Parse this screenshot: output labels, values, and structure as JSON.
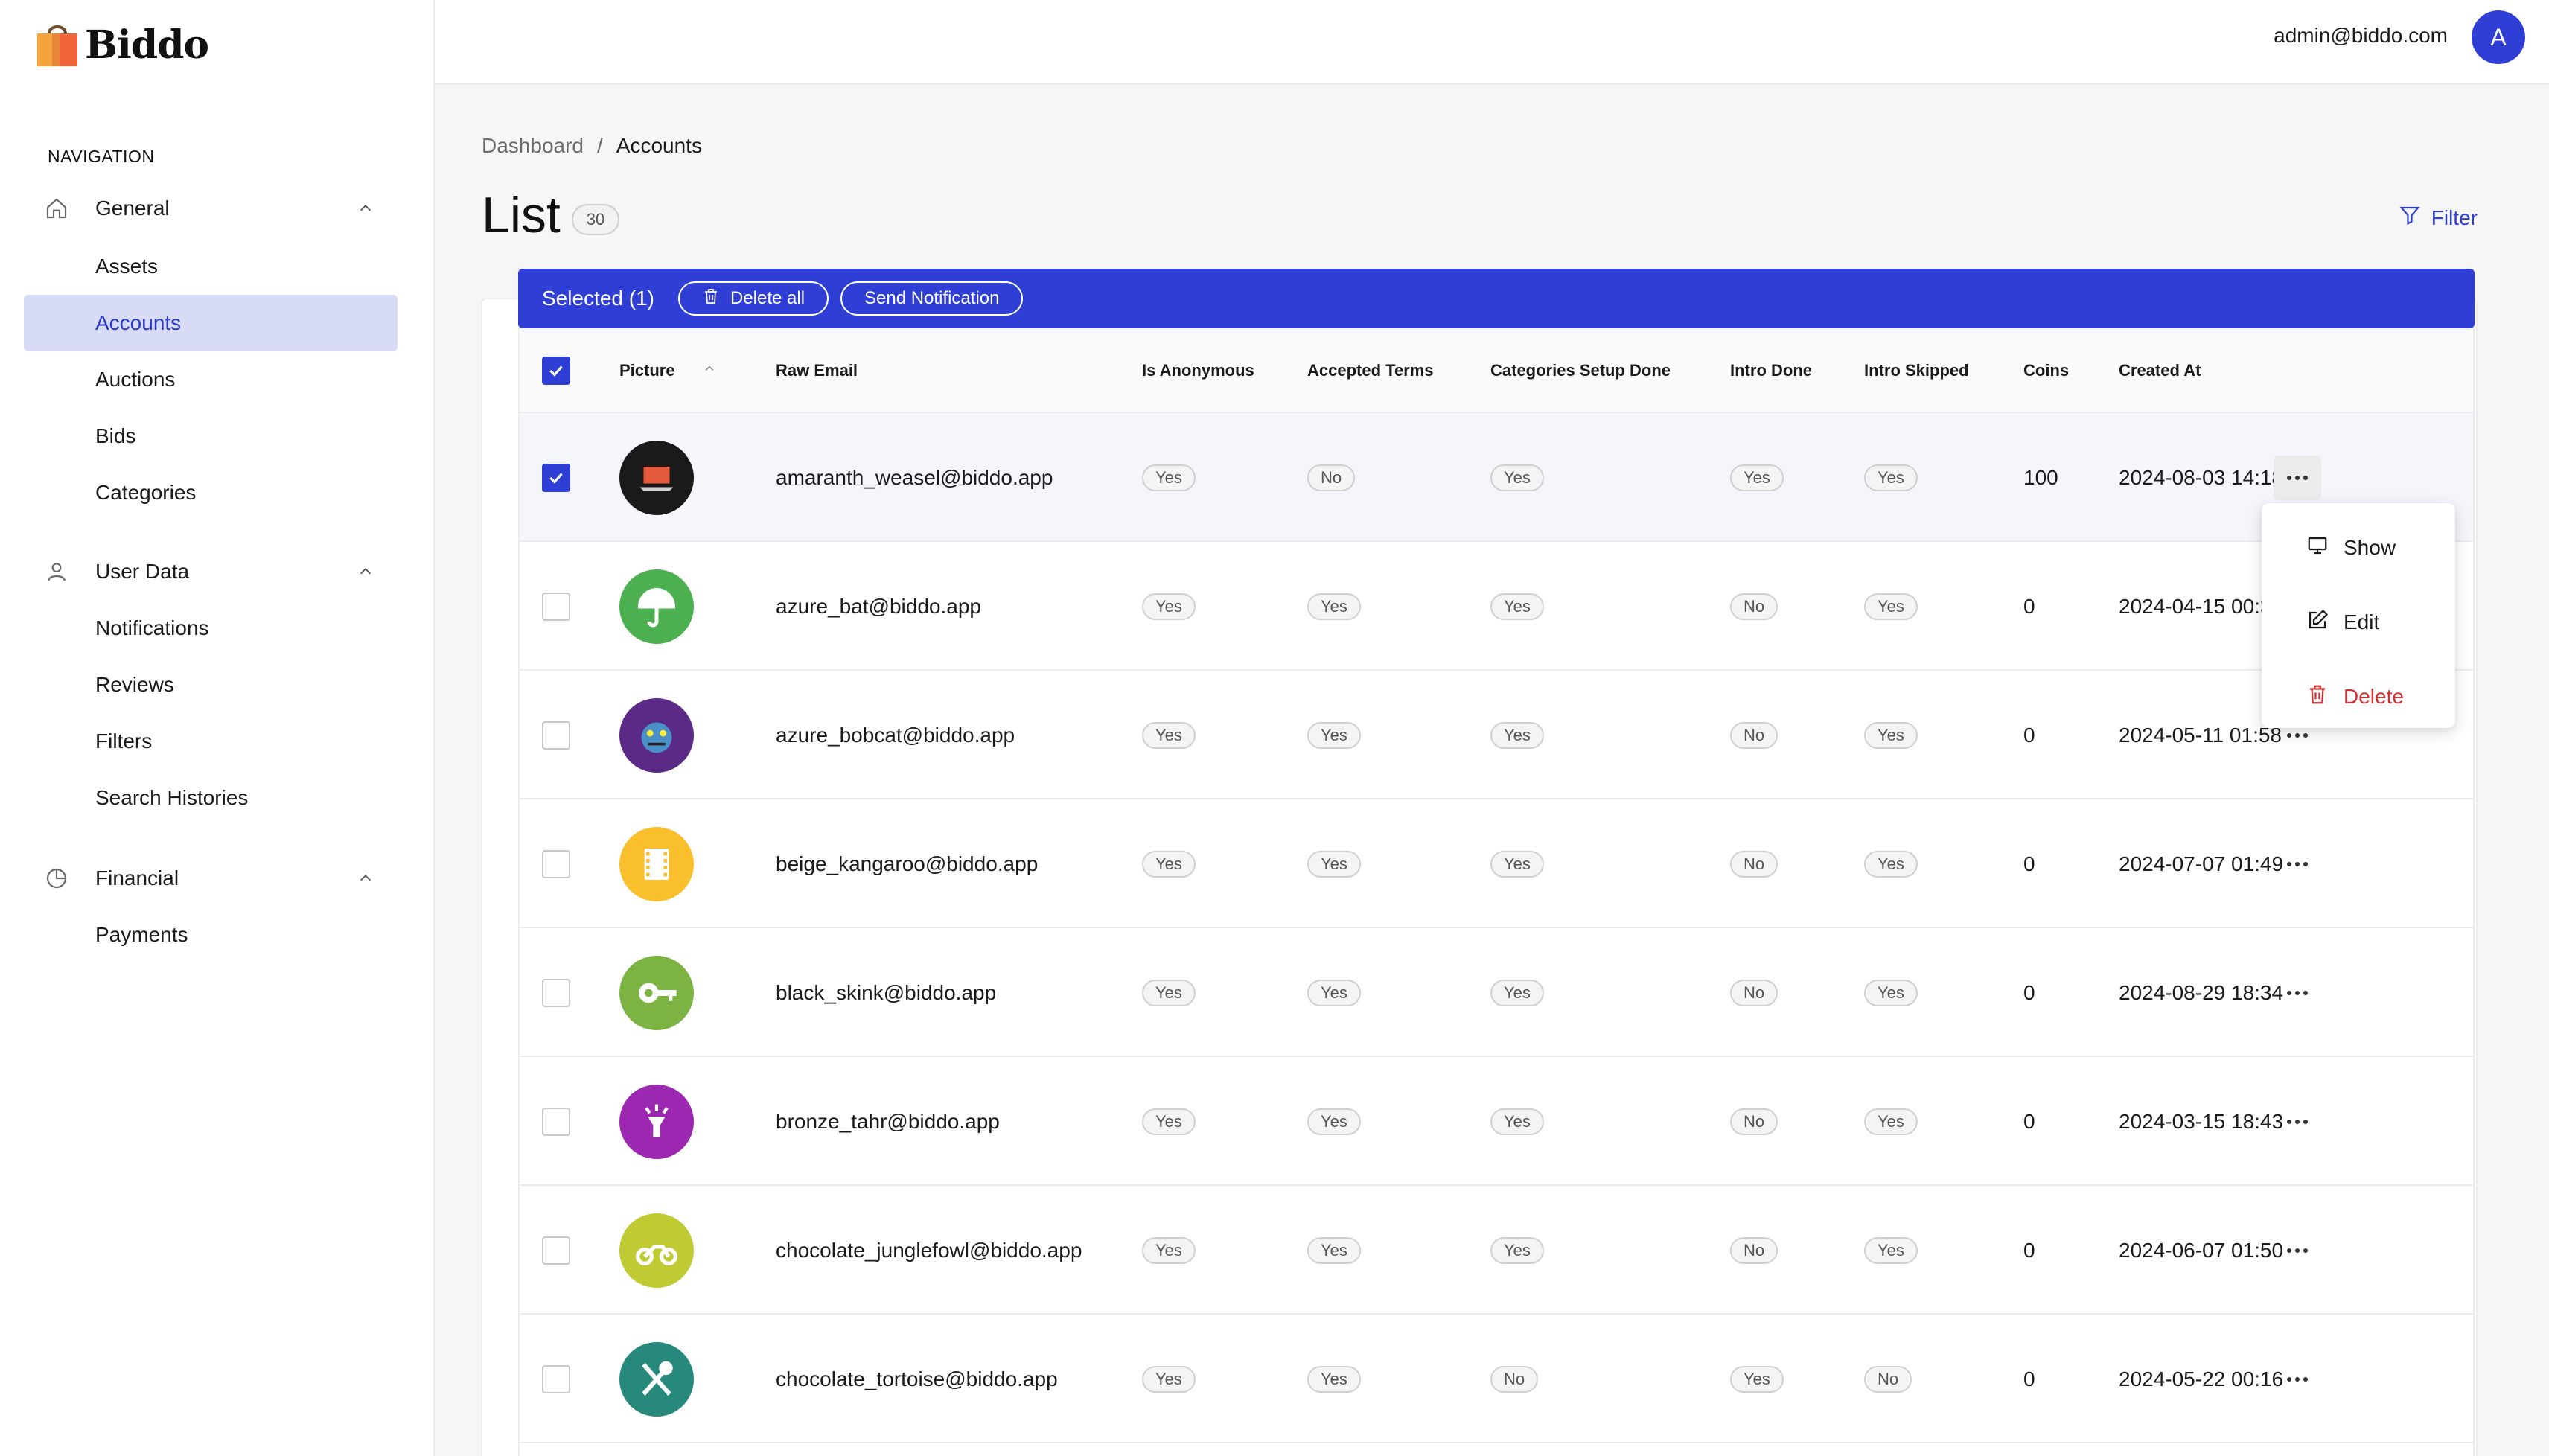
{
  "app": {
    "logo_text": "Biddo",
    "user_email": "admin@biddo.com",
    "avatar_initial": "A",
    "accent": "#2f3fd6"
  },
  "sidebar": {
    "heading": "NAVIGATION",
    "groups": [
      {
        "label": "General",
        "icon": "home-icon",
        "items": [
          "Assets",
          "Accounts",
          "Auctions",
          "Bids",
          "Categories"
        ]
      },
      {
        "label": "User Data",
        "icon": "user-icon",
        "items": [
          "Notifications",
          "Reviews",
          "Filters",
          "Search Histories"
        ]
      },
      {
        "label": "Financial",
        "icon": "pie-chart-icon",
        "items": [
          "Payments"
        ]
      }
    ],
    "active_item": "Accounts"
  },
  "breadcrumb": {
    "root": "Dashboard",
    "separator": "/",
    "current": "Accounts"
  },
  "page": {
    "title": "List",
    "count": "30",
    "filter_label": "Filter"
  },
  "selection_bar": {
    "text": "Selected (1)",
    "delete_all": "Delete all",
    "send_notification": "Send Notification"
  },
  "table": {
    "columns": {
      "picture": "Picture",
      "raw_email": "Raw Email",
      "is_anonymous": "Is Anonymous",
      "accepted_terms": "Accepted Terms",
      "categories_setup_done": "Categories Setup Done",
      "intro_done": "Intro Done",
      "intro_skipped": "Intro Skipped",
      "coins": "Coins",
      "created_at": "Created At"
    },
    "rows": [
      {
        "email": "amaranth_weasel@biddo.app",
        "is_anonymous": "Yes",
        "accepted_terms": "No",
        "categories_setup_done": "Yes",
        "intro_done": "Yes",
        "intro_skipped": "Yes",
        "coins": "100",
        "created_at": "2024-08-03 14:18",
        "selected": true,
        "avatar_color": "#1a1a1a",
        "avatar_icon": "laptop-icon"
      },
      {
        "email": "azure_bat@biddo.app",
        "is_anonymous": "Yes",
        "accepted_terms": "Yes",
        "categories_setup_done": "Yes",
        "intro_done": "No",
        "intro_skipped": "Yes",
        "coins": "0",
        "created_at": "2024-04-15 00:3",
        "selected": false,
        "avatar_color": "#4caf50",
        "avatar_icon": "umbrella-icon"
      },
      {
        "email": "azure_bobcat@biddo.app",
        "is_anonymous": "Yes",
        "accepted_terms": "Yes",
        "categories_setup_done": "Yes",
        "intro_done": "No",
        "intro_skipped": "Yes",
        "coins": "0",
        "created_at": "2024-05-11 01:58",
        "selected": false,
        "avatar_color": "#5b2a86",
        "avatar_icon": "creature-icon"
      },
      {
        "email": "beige_kangaroo@biddo.app",
        "is_anonymous": "Yes",
        "accepted_terms": "Yes",
        "categories_setup_done": "Yes",
        "intro_done": "No",
        "intro_skipped": "Yes",
        "coins": "0",
        "created_at": "2024-07-07 01:49",
        "selected": false,
        "avatar_color": "#f9bf2d",
        "avatar_icon": "film-icon"
      },
      {
        "email": "black_skink@biddo.app",
        "is_anonymous": "Yes",
        "accepted_terms": "Yes",
        "categories_setup_done": "Yes",
        "intro_done": "No",
        "intro_skipped": "Yes",
        "coins": "0",
        "created_at": "2024-08-29 18:34",
        "selected": false,
        "avatar_color": "#7cb342",
        "avatar_icon": "key-icon"
      },
      {
        "email": "bronze_tahr@biddo.app",
        "is_anonymous": "Yes",
        "accepted_terms": "Yes",
        "categories_setup_done": "Yes",
        "intro_done": "No",
        "intro_skipped": "Yes",
        "coins": "0",
        "created_at": "2024-03-15 18:43",
        "selected": false,
        "avatar_color": "#9c27b0",
        "avatar_icon": "flashlight-icon"
      },
      {
        "email": "chocolate_junglefowl@biddo.app",
        "is_anonymous": "Yes",
        "accepted_terms": "Yes",
        "categories_setup_done": "Yes",
        "intro_done": "No",
        "intro_skipped": "Yes",
        "coins": "0",
        "created_at": "2024-06-07 01:50",
        "selected": false,
        "avatar_color": "#c0ca33",
        "avatar_icon": "motorcycle-icon"
      },
      {
        "email": "chocolate_tortoise@biddo.app",
        "is_anonymous": "Yes",
        "accepted_terms": "Yes",
        "categories_setup_done": "No",
        "intro_done": "Yes",
        "intro_skipped": "No",
        "coins": "0",
        "created_at": "2024-05-22 00:16",
        "selected": false,
        "avatar_color": "#26897b",
        "avatar_icon": "utensils-icon"
      }
    ]
  },
  "row_menu": {
    "show": "Show",
    "edit": "Edit",
    "delete": "Delete"
  }
}
